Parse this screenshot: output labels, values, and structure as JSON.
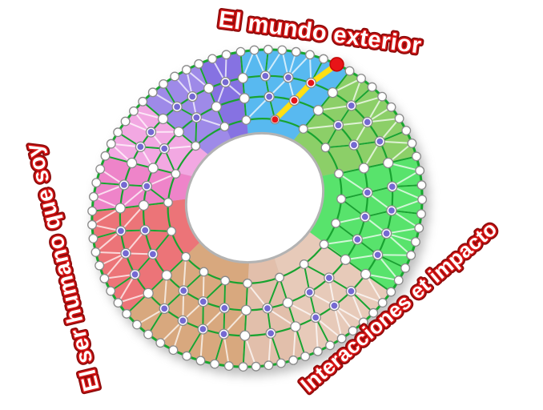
{
  "page": {
    "background": "#ffffff"
  },
  "labels": {
    "top": {
      "text": "El mundo exterior"
    },
    "left": {
      "text": "El ser humano que soy"
    },
    "right": {
      "text": "Interacciones et impacto"
    },
    "style": {
      "fill": "#ffffff",
      "stroke": "#d81616",
      "outline": "#8e0b0b"
    }
  },
  "wheel": {
    "hole_color": "#ffffff",
    "hole_border": "#b3b3b3",
    "ring_line_color": "#18a330",
    "outer_edge_color": "#17a62f",
    "mesh_line_color": "rgba(255,255,255,0.72)",
    "node_white_fill": "#ffffff",
    "node_ring_fill": "#ffffff",
    "node_stroke": "#8a8a8a",
    "node_purple_fill": "#7569d2",
    "highlight_node_fill": "#e81418",
    "highlight_node_edge": "#c40808",
    "highlight_path_color": "#ffdf12",
    "sectors": [
      {
        "name": "azul-mundo-exterior",
        "color": "#58b9f0",
        "start": -6,
        "end": 34
      },
      {
        "name": "verde-oliva",
        "color": "#8ccf68",
        "start": 34,
        "end": 72
      },
      {
        "name": "verde-brillante",
        "color": "#58e36c",
        "start": 72,
        "end": 122
      },
      {
        "name": "arena-clara",
        "color": "#e7cab9",
        "start": 122,
        "end": 162
      },
      {
        "name": "arena-media",
        "color": "#e2bfab",
        "start": 162,
        "end": 185
      },
      {
        "name": "arena-oscura",
        "color": "#d8a87e",
        "start": 185,
        "end": 231
      },
      {
        "name": "rojo",
        "color": "#ec7478",
        "start": 231,
        "end": 269
      },
      {
        "name": "rosa-fuerte",
        "color": "#ee84c9",
        "start": 269,
        "end": 289
      },
      {
        "name": "orquidea",
        "color": "#f2a8e2",
        "start": 289,
        "end": 313
      },
      {
        "name": "violeta-claro",
        "color": "#9e8ae8",
        "start": 313,
        "end": 338
      },
      {
        "name": "violeta-oscuro",
        "color": "#8672e2",
        "start": 338,
        "end": 354
      }
    ],
    "ring_steps_deg": [
      18,
      12,
      9.5,
      5
    ],
    "highlight_path_angles": [
      20,
      24,
      27,
      30
    ]
  }
}
